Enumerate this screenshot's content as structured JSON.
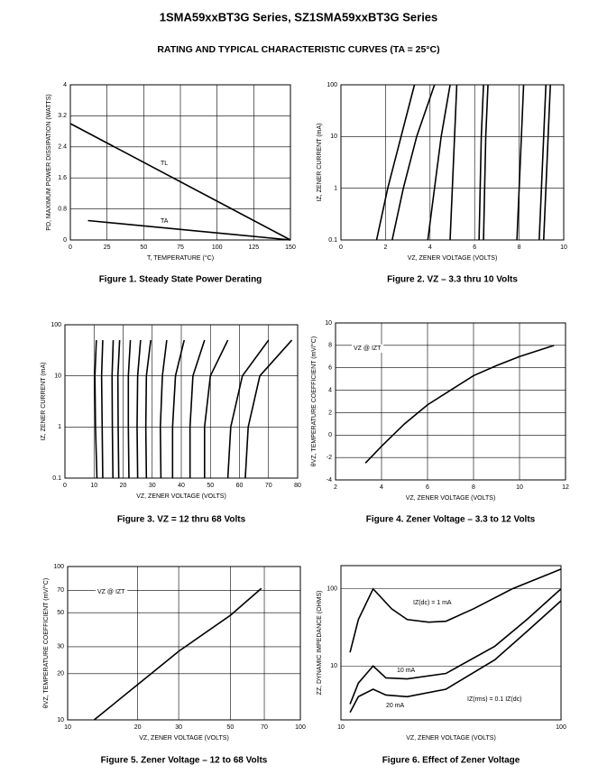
{
  "header": {
    "title": "1SMA59xxBT3G Series, SZ1SMA59xxBT3G Series",
    "subtitle": "RATING AND TYPICAL CHARACTERISTIC CURVES (TA = 25°C)"
  },
  "chart_data": [
    {
      "type": "line",
      "title": "Figure 1. Steady State Power Derating",
      "xlabel": "T, TEMPERATURE (°C)",
      "ylabel": "PD, MAXIMUM POWER DISSIPATION (WATTS)",
      "xlim": [
        0,
        150
      ],
      "xticks": [
        0,
        25,
        50,
        75,
        100,
        125,
        150
      ],
      "ylim": [
        0,
        4
      ],
      "yticks": [
        0,
        0.8,
        1.6,
        2.4,
        3.2,
        4
      ],
      "grid": true,
      "series": [
        {
          "name": "TL",
          "color": "#000000",
          "x": [
            0,
            150
          ],
          "values": [
            3,
            0
          ]
        },
        {
          "name": "TA",
          "color": "#000000",
          "x": [
            12,
            150
          ],
          "values": [
            0.5,
            0
          ]
        }
      ]
    },
    {
      "type": "line",
      "title": "Figure 2. VZ – 3.3 thru 10 Volts",
      "xlabel": "VZ, ZENER VOLTAGE (VOLTS)",
      "ylabel": "IZ, ZENER CURRENT (mA)",
      "xlim": [
        0,
        10
      ],
      "xticks": [
        0,
        2,
        4,
        6,
        8,
        10
      ],
      "ylim": [
        0.1,
        100
      ],
      "yticks": [
        0.1,
        1,
        10,
        100
      ],
      "ylog": true,
      "grid": true,
      "series": [
        {
          "color": "#000000",
          "x": [
            1.6,
            2.1,
            2.7,
            3.3
          ],
          "values": [
            0.1,
            1,
            10,
            100
          ]
        },
        {
          "color": "#000000",
          "x": [
            2.3,
            2.8,
            3.4,
            4.2
          ],
          "values": [
            0.1,
            1,
            10,
            100
          ]
        },
        {
          "color": "#000000",
          "x": [
            3.9,
            4.2,
            4.5,
            4.9
          ],
          "values": [
            0.1,
            1,
            10,
            100
          ]
        },
        {
          "color": "#000000",
          "x": [
            4.9,
            5.0,
            5.1,
            5.2
          ],
          "values": [
            0.1,
            1,
            10,
            100
          ]
        },
        {
          "color": "#000000",
          "x": [
            6.2,
            6.25,
            6.3,
            6.4
          ],
          "values": [
            0.1,
            1,
            10,
            100
          ]
        },
        {
          "color": "#000000",
          "x": [
            6.4,
            6.45,
            6.5,
            6.6
          ],
          "values": [
            0.1,
            1,
            10,
            100
          ]
        },
        {
          "color": "#000000",
          "x": [
            7.9,
            8.0,
            8.1,
            8.2
          ],
          "values": [
            0.1,
            1,
            10,
            100
          ]
        },
        {
          "color": "#000000",
          "x": [
            8.9,
            9.0,
            9.1,
            9.2
          ],
          "values": [
            0.1,
            1,
            10,
            100
          ]
        },
        {
          "color": "#000000",
          "x": [
            9.1,
            9.2,
            9.3,
            9.4
          ],
          "values": [
            0.1,
            1,
            10,
            100
          ]
        }
      ]
    },
    {
      "type": "line",
      "title": "Figure 3. VZ = 12 thru 68 Volts",
      "xlabel": "VZ, ZENER VOLTAGE (VOLTS)",
      "ylabel": "IZ, ZENER CURRENT (mA)",
      "xlim": [
        0,
        80
      ],
      "xticks": [
        0,
        10,
        20,
        30,
        40,
        50,
        60,
        70,
        80
      ],
      "ylim": [
        0.1,
        100
      ],
      "yticks": [
        0.1,
        1,
        10,
        100
      ],
      "ylog": true,
      "grid": true,
      "series": [
        {
          "color": "#000000",
          "x": [
            11,
            10.5,
            10.3,
            10.8
          ],
          "values": [
            0.1,
            1,
            10,
            50
          ]
        },
        {
          "color": "#000000",
          "x": [
            13,
            12.8,
            12.6,
            13
          ],
          "values": [
            0.1,
            1,
            10,
            50
          ]
        },
        {
          "color": "#000000",
          "x": [
            16.5,
            16.3,
            16.2,
            16.6
          ],
          "values": [
            0.1,
            1,
            10,
            50
          ]
        },
        {
          "color": "#000000",
          "x": [
            18.5,
            18.3,
            18.2,
            18.8
          ],
          "values": [
            0.1,
            1,
            10,
            50
          ]
        },
        {
          "color": "#000000",
          "x": [
            22,
            21.8,
            21.8,
            22.5
          ],
          "values": [
            0.1,
            1,
            10,
            50
          ]
        },
        {
          "color": "#000000",
          "x": [
            25,
            24.8,
            25,
            26
          ],
          "values": [
            0.1,
            1,
            10,
            50
          ]
        },
        {
          "color": "#000000",
          "x": [
            28,
            27.8,
            28,
            29.5
          ],
          "values": [
            0.1,
            1,
            10,
            50
          ]
        },
        {
          "color": "#000000",
          "x": [
            33,
            32.8,
            33.5,
            35
          ],
          "values": [
            0.1,
            1,
            10,
            50
          ]
        },
        {
          "color": "#000000",
          "x": [
            37,
            37,
            38,
            41
          ],
          "values": [
            0.1,
            1,
            10,
            50
          ]
        },
        {
          "color": "#000000",
          "x": [
            43,
            43,
            44,
            48
          ],
          "values": [
            0.1,
            1,
            10,
            50
          ]
        },
        {
          "color": "#000000",
          "x": [
            48,
            48,
            50,
            56
          ],
          "values": [
            0.1,
            1,
            10,
            50
          ]
        },
        {
          "color": "#000000",
          "x": [
            56,
            57,
            61,
            70
          ],
          "values": [
            0.1,
            1,
            10,
            50
          ]
        },
        {
          "color": "#000000",
          "x": [
            62,
            63,
            67,
            78
          ],
          "values": [
            0.1,
            1,
            10,
            50
          ]
        }
      ]
    },
    {
      "type": "line",
      "title": "Figure 4. Zener Voltage – 3.3 to 12 Volts",
      "xlabel": "VZ, ZENER VOLTAGE (VOLTS)",
      "ylabel": "θVZ, TEMPERATURE COEFFICIENT (mV/°C)",
      "xlim": [
        2,
        12
      ],
      "xticks": [
        2,
        4,
        6,
        8,
        10,
        12
      ],
      "ylim": [
        -4,
        10
      ],
      "yticks": [
        -4,
        -2,
        0,
        2,
        4,
        6,
        8,
        10
      ],
      "grid": true,
      "annotations": [
        "VZ @ IZT"
      ],
      "series": [
        {
          "color": "#000000",
          "x": [
            3.3,
            4,
            5,
            6,
            7,
            8,
            9,
            10,
            11.5
          ],
          "values": [
            -2.5,
            -1,
            1,
            2.7,
            4,
            5.3,
            6.2,
            7,
            8
          ]
        }
      ]
    },
    {
      "type": "line",
      "title": "Figure 5. Zener Voltage – 12 to 68 Volts",
      "xlabel": "VZ, ZENER VOLTAGE (VOLTS)",
      "ylabel": "θVZ, TEMPERATURE COEFFICIENT (mV/°C)",
      "xlim": [
        10,
        100
      ],
      "xticks": [
        10,
        20,
        30,
        50,
        70,
        100
      ],
      "xlog": true,
      "ylim": [
        10,
        100
      ],
      "yticks": [
        10,
        20,
        30,
        50,
        70,
        100
      ],
      "ylog": true,
      "grid": true,
      "annotations": [
        "VZ @ IZT"
      ],
      "series": [
        {
          "color": "#000000",
          "x": [
            13,
            20,
            30,
            50,
            68
          ],
          "values": [
            10,
            17,
            28,
            48,
            72
          ]
        }
      ]
    },
    {
      "type": "line",
      "title": "Figure 6. Effect of Zener Voltage",
      "xlabel": "VZ, ZENER VOLTAGE (VOLTS)",
      "ylabel": "ZZ, DYNAMIC IMPEDANCE (OHMS)",
      "xlim": [
        10,
        100
      ],
      "xticks": [
        10,
        100
      ],
      "xlog": true,
      "ylim": [
        2,
        200
      ],
      "yticks": [
        10,
        100
      ],
      "ylog": true,
      "grid": true,
      "annotations": [
        "IZ(dc) = 1 mA",
        "10 mA",
        "20 mA",
        "IZ(rms) = 0.1 IZ(dc)"
      ],
      "series": [
        {
          "color": "#000000",
          "x": [
            11,
            12,
            14,
            17,
            20,
            25,
            30,
            40,
            60,
            100
          ],
          "values": [
            15,
            40,
            100,
            55,
            40,
            37,
            38,
            55,
            100,
            180
          ]
        },
        {
          "color": "#000000",
          "x": [
            11,
            12,
            14,
            16,
            20,
            30,
            50,
            70,
            100
          ],
          "values": [
            3.2,
            6,
            10,
            7,
            6.8,
            8,
            18,
            40,
            100
          ]
        },
        {
          "color": "#000000",
          "x": [
            11,
            12,
            14,
            16,
            20,
            30,
            50,
            70,
            100
          ],
          "values": [
            2.5,
            4,
            5,
            4.2,
            4,
            5,
            12,
            28,
            70
          ]
        }
      ]
    }
  ]
}
